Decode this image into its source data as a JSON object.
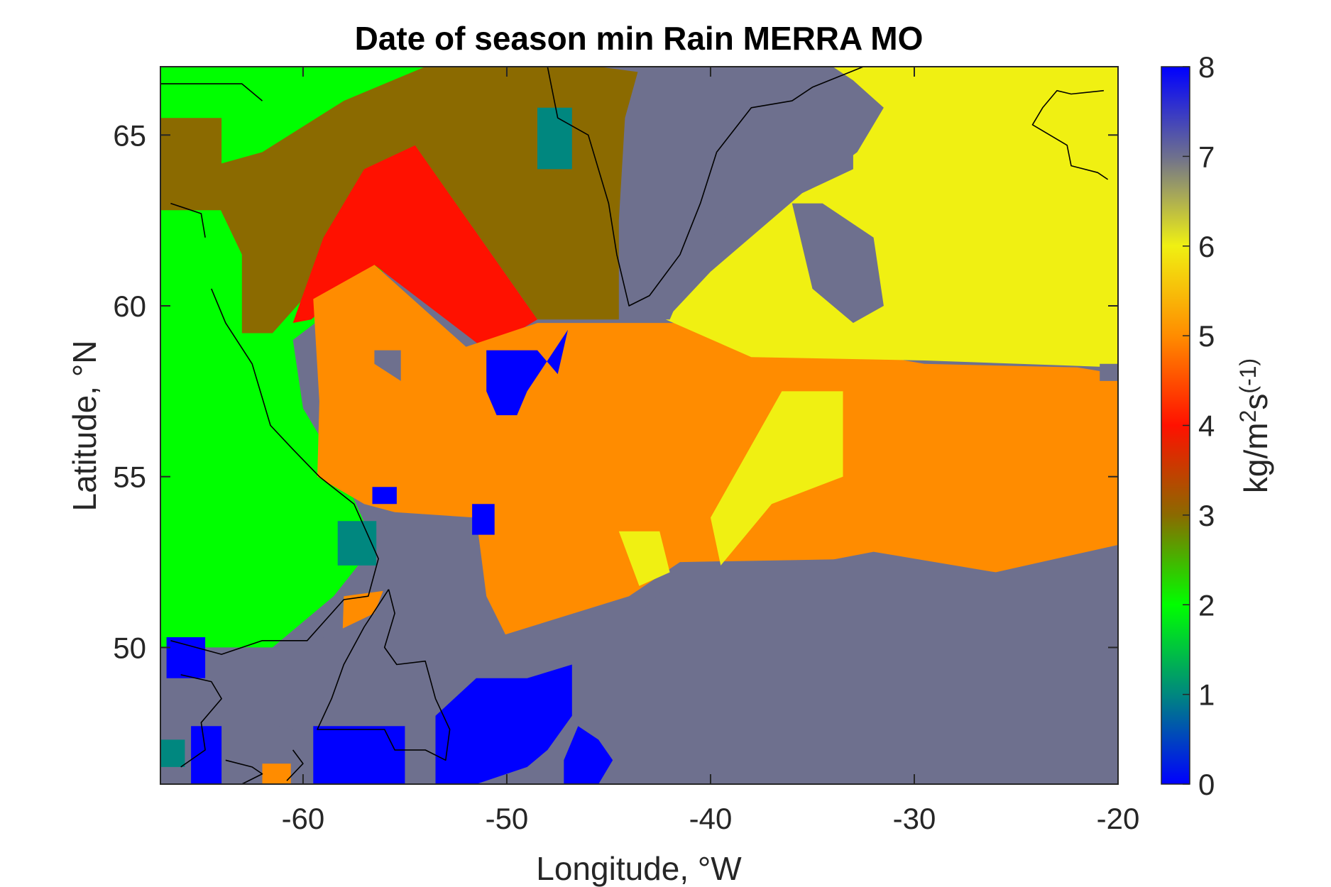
{
  "chart_data": {
    "type": "heatmap",
    "title": "Date of season min Rain MERRA MO",
    "xlabel": "Longitude, °W",
    "ylabel": "Latitude, °N",
    "xlim": [
      -67,
      -20
    ],
    "ylim": [
      46,
      67
    ],
    "xticks": [
      -60,
      -50,
      -40,
      -30,
      -20
    ],
    "yticks": [
      50,
      55,
      60,
      65
    ],
    "colorbar": {
      "label": "kg/m^2s^(-1)",
      "label_parts": [
        "kg/m",
        "2",
        "s",
        "(-1)"
      ],
      "range": [
        0,
        8
      ],
      "ticks": [
        0,
        1,
        2,
        3,
        4,
        5,
        6,
        7,
        8
      ],
      "stops": [
        {
          "value": 0,
          "color": "#0000ff"
        },
        {
          "value": 1,
          "color": "#00877f"
        },
        {
          "value": 2,
          "color": "#00ff00"
        },
        {
          "value": 3,
          "color": "#8b6a00"
        },
        {
          "value": 4,
          "color": "#ff1100"
        },
        {
          "value": 5,
          "color": "#ff8c00"
        },
        {
          "value": 6,
          "color": "#f0f012"
        },
        {
          "value": 7,
          "color": "#6e708e"
        },
        {
          "value": 8,
          "color": "#0000ff"
        }
      ]
    },
    "regions": [
      {
        "value": 2,
        "color": "#00ff00",
        "points": [
          [
            -67,
            67
          ],
          [
            -45.5,
            67
          ],
          [
            -47,
            63.5
          ],
          [
            -55,
            61.5
          ],
          [
            -60.5,
            59
          ],
          [
            -60,
            57
          ],
          [
            -58,
            55
          ],
          [
            -56.5,
            53
          ],
          [
            -58.5,
            51.5
          ],
          [
            -61.5,
            50
          ],
          [
            -67,
            50
          ]
        ]
      },
      {
        "value": 3,
        "color": "#8b6a00",
        "points": [
          [
            -45.5,
            67
          ],
          [
            -43,
            66.8
          ],
          [
            -44,
            64
          ],
          [
            -44.5,
            59.6
          ],
          [
            -48.5,
            59.6
          ],
          [
            -54.5,
            64.7
          ],
          [
            -60,
            60.2
          ],
          [
            -61.5,
            59.2
          ],
          [
            -63,
            59.2
          ],
          [
            -63,
            61.5
          ],
          [
            -65,
            64
          ],
          [
            -62,
            64.5
          ],
          [
            -58,
            66
          ],
          [
            -54,
            67
          ]
        ]
      },
      {
        "value": 3,
        "color": "#8b6a00",
        "points": [
          [
            -67,
            65.5
          ],
          [
            -64,
            65.5
          ],
          [
            -64,
            62.8
          ],
          [
            -67,
            62.8
          ]
        ]
      },
      {
        "value": 4,
        "color": "#ff1100",
        "points": [
          [
            -54.5,
            64.7
          ],
          [
            -48.5,
            59.6
          ],
          [
            -51,
            58.7
          ],
          [
            -56.5,
            61.2
          ],
          [
            -59.6,
            59.6
          ],
          [
            -60.5,
            59.5
          ],
          [
            -59,
            62
          ],
          [
            -57,
            64
          ]
        ]
      },
      {
        "value": 5,
        "color": "#ff8c00",
        "points": [
          [
            -59.5,
            60.2
          ],
          [
            -56.5,
            61.2
          ],
          [
            -52,
            58.8
          ],
          [
            -48.5,
            59.5
          ],
          [
            -41,
            59.5
          ],
          [
            -29.5,
            58.3
          ],
          [
            -22,
            58.2
          ],
          [
            -20,
            58
          ],
          [
            -20,
            53
          ],
          [
            -26,
            52.2
          ],
          [
            -32,
            52.6
          ],
          [
            -41.5,
            52.5
          ],
          [
            -44,
            51.5
          ],
          [
            -50.5,
            50.3
          ],
          [
            -51.5,
            52
          ],
          [
            -54.5,
            53.8
          ],
          [
            -57,
            54.2
          ],
          [
            -59.3,
            55
          ],
          [
            -59.2,
            57.2
          ]
        ]
      },
      {
        "value": 5,
        "color": "#ff8c00",
        "points": [
          [
            -58,
            51.5
          ],
          [
            -55.5,
            51.7
          ],
          [
            -53.5,
            49
          ],
          [
            -53.5,
            47
          ],
          [
            -58.2,
            47.8
          ]
        ]
      },
      {
        "value": 5,
        "color": "#ff8c00",
        "points": [
          [
            -62,
            46
          ],
          [
            -62,
            46.6
          ],
          [
            -60.6,
            46.6
          ],
          [
            -60.6,
            46
          ]
        ]
      },
      {
        "value": 5,
        "color": "#ff8c00",
        "points": [
          [
            -20.6,
            64.5
          ],
          [
            -20,
            64.5
          ],
          [
            -20,
            63.5
          ],
          [
            -20.6,
            63.5
          ]
        ]
      },
      {
        "value": 6,
        "color": "#f0f012",
        "points": [
          [
            -38.5,
            67
          ],
          [
            -20,
            67
          ],
          [
            -20,
            58.2
          ],
          [
            -29.5,
            58.4
          ],
          [
            -38,
            58.5
          ],
          [
            -42.2,
            59.6
          ],
          [
            -40,
            61
          ],
          [
            -35.5,
            63.3
          ],
          [
            -32.8,
            64.5
          ],
          [
            -31.5,
            65.8
          ],
          [
            -33,
            66.6
          ],
          [
            -34,
            67
          ]
        ]
      },
      {
        "value": 6,
        "color": "#f0f012",
        "points": [
          [
            -36.5,
            57.5
          ],
          [
            -33.5,
            57.5
          ],
          [
            -33.5,
            55
          ],
          [
            -37,
            54.2
          ],
          [
            -39.5,
            52.4
          ],
          [
            -40,
            53.8
          ]
        ]
      },
      {
        "value": 6,
        "color": "#f0f012",
        "points": [
          [
            -44.5,
            53.4
          ],
          [
            -42.5,
            53.4
          ],
          [
            -42,
            52.2
          ],
          [
            -43.5,
            51.8
          ]
        ]
      },
      {
        "value": 6,
        "color": "#f0f012",
        "points": [
          [
            -43.8,
            47.8
          ],
          [
            -41.8,
            47.8
          ],
          [
            -41.8,
            47.3
          ],
          [
            -43.8,
            47.3
          ]
        ]
      },
      {
        "value": 7,
        "color": "#6e708e",
        "points": [
          [
            -43.5,
            67
          ],
          [
            -38.5,
            67
          ],
          [
            -38.5,
            66.8
          ],
          [
            -34,
            66.8
          ],
          [
            -33,
            66.6
          ],
          [
            -33,
            64
          ],
          [
            -35.5,
            63.3
          ],
          [
            -38.5,
            63.3
          ],
          [
            -41,
            61
          ],
          [
            -42,
            59.6
          ],
          [
            -43,
            59.6
          ],
          [
            -44.5,
            59.6
          ],
          [
            -44.5,
            62.5
          ],
          [
            -44.2,
            65.5
          ]
        ]
      },
      {
        "value": 7,
        "color": "#6e708e",
        "points": [
          [
            -36,
            63
          ],
          [
            -34.5,
            63
          ],
          [
            -32,
            62
          ],
          [
            -31.5,
            60
          ],
          [
            -33,
            59.5
          ],
          [
            -35,
            60.5
          ]
        ]
      },
      {
        "value": 7,
        "color": "#6e708e",
        "points": [
          [
            -20,
            53
          ],
          [
            -26,
            52.2
          ],
          [
            -32,
            52.8
          ],
          [
            -42.5,
            51.6
          ],
          [
            -44.5,
            50.3
          ],
          [
            -50,
            50.3
          ],
          [
            -51,
            51.5
          ],
          [
            -51.5,
            53.8
          ],
          [
            -56.5,
            54
          ],
          [
            -55.2,
            53
          ],
          [
            -56.5,
            51
          ],
          [
            -60,
            50
          ],
          [
            -66,
            49.8
          ],
          [
            -66,
            48.5
          ],
          [
            -60,
            47.5
          ],
          [
            -59,
            46.5
          ],
          [
            -56,
            46
          ],
          [
            -20,
            46
          ]
        ]
      },
      {
        "value": 7,
        "color": "#6e708e",
        "points": [
          [
            -56.5,
            58.7
          ],
          [
            -55.2,
            58.7
          ],
          [
            -55.2,
            57.8
          ],
          [
            -56.5,
            58.3
          ]
        ]
      },
      {
        "value": 7,
        "color": "#6e708e",
        "points": [
          [
            -20.9,
            58.3
          ],
          [
            -20,
            58.3
          ],
          [
            -20,
            57.8
          ],
          [
            -20.9,
            57.8
          ]
        ]
      },
      {
        "value": 1,
        "color": "#00877f",
        "points": [
          [
            -48.5,
            65.8
          ],
          [
            -46.8,
            65.8
          ],
          [
            -46.8,
            64
          ],
          [
            -48.5,
            64
          ]
        ]
      },
      {
        "value": 1,
        "color": "#00877f",
        "points": [
          [
            -58.3,
            53.7
          ],
          [
            -56.4,
            53.7
          ],
          [
            -56.4,
            52.4
          ],
          [
            -58.3,
            52.4
          ]
        ]
      },
      {
        "value": 1,
        "color": "#00877f",
        "points": [
          [
            -67,
            47.3
          ],
          [
            -65.8,
            47.3
          ],
          [
            -65.8,
            46.5
          ],
          [
            -67,
            46.5
          ]
        ]
      },
      {
        "value": 0,
        "color": "#0000ff",
        "points": [
          [
            -51,
            58.7
          ],
          [
            -48.5,
            58.7
          ],
          [
            -47.5,
            58
          ],
          [
            -47,
            59.3
          ],
          [
            -49,
            57.5
          ],
          [
            -49.5,
            56.8
          ],
          [
            -50.5,
            56.8
          ],
          [
            -51,
            57.5
          ]
        ]
      },
      {
        "value": 0,
        "color": "#0000ff",
        "points": [
          [
            -56.6,
            54.7
          ],
          [
            -55.4,
            54.7
          ],
          [
            -55.4,
            54.2
          ],
          [
            -56.6,
            54.2
          ]
        ]
      },
      {
        "value": 0,
        "color": "#0000ff",
        "points": [
          [
            -51.7,
            54.2
          ],
          [
            -50.6,
            54.2
          ],
          [
            -50.6,
            53.3
          ],
          [
            -51.7,
            53.3
          ]
        ]
      },
      {
        "value": 0,
        "color": "#0000ff",
        "points": [
          [
            -66.7,
            50.3
          ],
          [
            -64.8,
            50.3
          ],
          [
            -64.8,
            49.1
          ],
          [
            -66.7,
            49.1
          ]
        ]
      },
      {
        "value": 0,
        "color": "#0000ff",
        "points": [
          [
            -51.5,
            49.1
          ],
          [
            -49,
            49.1
          ],
          [
            -46.8,
            49.5
          ],
          [
            -46.8,
            48
          ],
          [
            -48,
            47
          ],
          [
            -49,
            46.5
          ],
          [
            -51.5,
            46
          ],
          [
            -53.5,
            46
          ],
          [
            -53.5,
            48
          ]
        ]
      },
      {
        "value": 0,
        "color": "#0000ff",
        "points": [
          [
            -59.5,
            47.7
          ],
          [
            -55,
            47.7
          ],
          [
            -55,
            46
          ],
          [
            -59.5,
            46
          ]
        ]
      },
      {
        "value": 0,
        "color": "#0000ff",
        "points": [
          [
            -65.5,
            47.7
          ],
          [
            -64,
            47.7
          ],
          [
            -64,
            46
          ],
          [
            -65.5,
            46
          ]
        ]
      },
      {
        "value": 0,
        "color": "#0000ff",
        "points": [
          [
            -46.5,
            47.7
          ],
          [
            -45.5,
            47.3
          ],
          [
            -44.8,
            46.7
          ],
          [
            -45.5,
            46
          ],
          [
            -47.2,
            46
          ],
          [
            -47.2,
            46.7
          ]
        ]
      }
    ],
    "coastlines": [
      [
        [
          -48,
          67
        ],
        [
          -47.5,
          65.5
        ],
        [
          -46,
          65
        ],
        [
          -45,
          63
        ],
        [
          -44.6,
          61.5
        ],
        [
          -44,
          60
        ],
        [
          -43,
          60.3
        ],
        [
          -41.5,
          61.5
        ],
        [
          -40.5,
          63
        ],
        [
          -39.7,
          64.5
        ],
        [
          -38,
          65.8
        ],
        [
          -36,
          66
        ],
        [
          -35,
          66.4
        ],
        [
          -32.5,
          67
        ]
      ],
      [
        [
          -67,
          66.5
        ],
        [
          -64.5,
          66.5
        ],
        [
          -63,
          66.5
        ],
        [
          -62,
          66
        ]
      ],
      [
        [
          -66.5,
          63
        ],
        [
          -65,
          62.7
        ],
        [
          -64.8,
          62
        ]
      ],
      [
        [
          -64.5,
          60.5
        ],
        [
          -63.8,
          59.5
        ],
        [
          -62.5,
          58.3
        ],
        [
          -61.6,
          56.5
        ],
        [
          -60.5,
          55.8
        ],
        [
          -59.2,
          55
        ],
        [
          -57.5,
          54.2
        ],
        [
          -56.3,
          52.6
        ],
        [
          -56.8,
          51.5
        ],
        [
          -58,
          51.4
        ],
        [
          -59.8,
          50.2
        ],
        [
          -62,
          50.2
        ],
        [
          -64,
          49.8
        ],
        [
          -66.5,
          50.2
        ]
      ],
      [
        [
          -55.8,
          51.7
        ],
        [
          -55.5,
          51
        ],
        [
          -56,
          50
        ],
        [
          -55.4,
          49.5
        ],
        [
          -54,
          49.6
        ],
        [
          -53.5,
          48.5
        ],
        [
          -52.8,
          47.6
        ],
        [
          -53,
          46.7
        ],
        [
          -54,
          47
        ],
        [
          -55.5,
          47
        ],
        [
          -56,
          47.6
        ],
        [
          -58,
          47.6
        ],
        [
          -59.3,
          47.6
        ],
        [
          -58.6,
          48.5
        ],
        [
          -58,
          49.5
        ],
        [
          -57,
          50.6
        ],
        [
          -55.8,
          51.7
        ]
      ],
      [
        [
          -66,
          49.2
        ],
        [
          -64.5,
          49
        ],
        [
          -64,
          48.5
        ],
        [
          -65,
          47.8
        ],
        [
          -64.8,
          47
        ],
        [
          -66,
          46.5
        ]
      ],
      [
        [
          -63.8,
          46.7
        ],
        [
          -62.5,
          46.5
        ],
        [
          -62,
          46.3
        ],
        [
          -63,
          46
        ]
      ],
      [
        [
          -60.5,
          47
        ],
        [
          -60,
          46.6
        ],
        [
          -60.8,
          46.1
        ]
      ],
      [
        [
          -20.7,
          66.3
        ],
        [
          -22.3,
          66.2
        ],
        [
          -23,
          66.3
        ],
        [
          -23.7,
          65.8
        ],
        [
          -24.2,
          65.3
        ],
        [
          -22.5,
          64.7
        ],
        [
          -22.3,
          64.1
        ],
        [
          -21,
          63.9
        ],
        [
          -20.5,
          63.7
        ]
      ]
    ]
  }
}
